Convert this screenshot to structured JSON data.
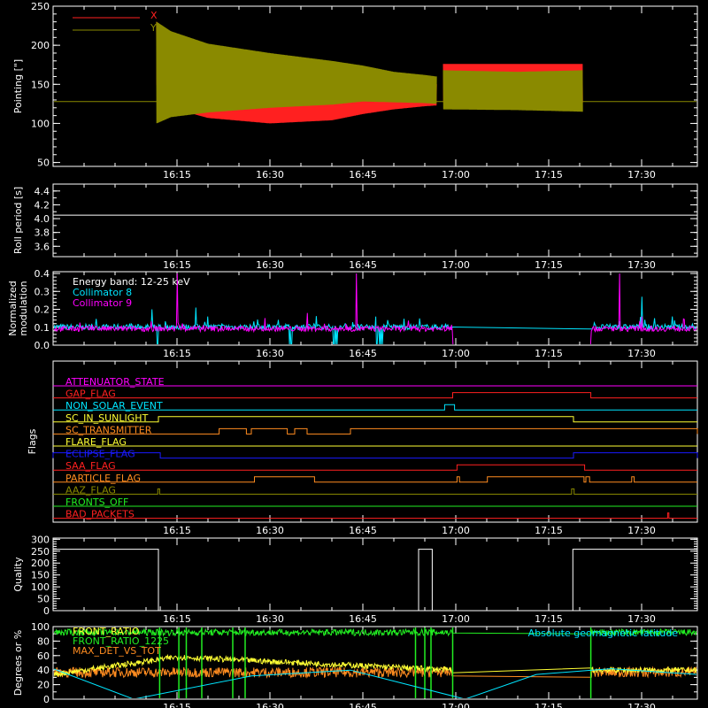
{
  "time_axis": {
    "ticks": [
      "16:15",
      "16:30",
      "16:45",
      "17:00",
      "17:15",
      "17:30"
    ],
    "tick_values_min": [
      975,
      990,
      1005,
      1020,
      1035,
      1050
    ],
    "range_min": [
      955,
      1059
    ]
  },
  "colors": {
    "background": "#000000",
    "axis": "#ffffff",
    "red": "#ff2020",
    "olive": "#8a8a00",
    "cyan": "#00e5ff",
    "magenta": "#ff00ff",
    "yellow": "#ffff33",
    "green": "#22ee22",
    "orange": "#ff8c20",
    "blue": "#1a1aff"
  },
  "chart_data": [
    {
      "type": "line",
      "ylabel": "Pointing [\"]",
      "yticks": [
        50,
        100,
        150,
        200,
        250
      ],
      "ylim": [
        45,
        250
      ],
      "legend": [
        "X",
        "Y"
      ],
      "series": [
        {
          "name": "X",
          "color": "#ff2020",
          "segments": [
            [
              [
                971.7,
                150,
                230
              ],
              [
                974,
                120,
                216
              ],
              [
                980,
                107,
                200
              ],
              [
                990,
                100,
                187
              ],
              [
                1000,
                104,
                176
              ],
              [
                1005,
                112,
                168
              ],
              [
                1010,
                118,
                160
              ],
              [
                1015,
                122,
                152
              ],
              [
                1016.9,
                123,
                150
              ]
            ],
            [
              [
                1018,
                127,
                176
              ],
              [
                1030,
                127,
                176
              ],
              [
                1040.5,
                127,
                176
              ]
            ]
          ]
        },
        {
          "name": "Y",
          "color": "#8a8a00",
          "segments": [
            [
              [
                971.7,
                100,
                230
              ],
              [
                974,
                108,
                218
              ],
              [
                980,
                114,
                202
              ],
              [
                990,
                120,
                190
              ],
              [
                1000,
                124,
                180
              ],
              [
                1005,
                128,
                174
              ],
              [
                1010,
                127,
                166
              ],
              [
                1015,
                126,
                162
              ],
              [
                1016.9,
                125,
                160
              ]
            ],
            [
              [
                1018,
                118,
                168
              ],
              [
                1030,
                117,
                166
              ],
              [
                1040.5,
                115,
                168
              ]
            ]
          ]
        }
      ],
      "baseline": 128
    },
    {
      "type": "line",
      "ylabel": "Roll period [s]",
      "yticks": [
        3.6,
        3.8,
        4.0,
        4.2,
        4.4
      ],
      "ylim": [
        3.45,
        4.5
      ],
      "series": [
        {
          "color": "#ffffff",
          "y": 4.05
        }
      ]
    },
    {
      "type": "line",
      "ylabel": "Normalized\nmodulation",
      "yticks": [
        0,
        0.1,
        0.2,
        0.3,
        0.4
      ],
      "ylim": [
        0,
        0.41
      ],
      "annotation": "Energy band: 12-25 keV",
      "legend": [
        "Collimator 8",
        "Collimator 9"
      ],
      "series": [
        {
          "name": "Collimator 8",
          "color": "#00e5ff",
          "base": 0.1,
          "active": [
            [
              955,
              1019.5
            ],
            [
              1041.8,
              1059
            ]
          ],
          "spikes": [
            [
              971,
              0.2
            ],
            [
              978,
              0.21
            ],
            [
              1009,
              0.14
            ],
            [
              1039,
              0.16
            ],
            [
              1050,
              0.27
            ],
            [
              1055,
              0.16
            ]
          ],
          "dips": [
            [
              971.8,
              973
            ],
            [
              987.2,
              988.3
            ],
            [
              992.8,
              994
            ],
            [
              1000.2,
              1001.3
            ],
            [
              1007.1,
              1008.2
            ]
          ]
        },
        {
          "name": "Collimator 9",
          "color": "#ff00ff",
          "base": 0.09,
          "active": [
            [
              955,
              1019.5
            ],
            [
              1041.8,
              1059
            ]
          ],
          "spikes": [
            [
              975,
              0.4
            ],
            [
              1004,
              0.4
            ],
            [
              1020.5,
              0.29
            ],
            [
              1046.4,
              0.4
            ],
            [
              996,
              0.18
            ],
            [
              1050,
              0.16
            ]
          ],
          "gap_level": 0.0
        }
      ]
    },
    {
      "type": "line",
      "ylabel": "Flags",
      "flags": [
        {
          "name": "ATTENUATOR_STATE",
          "color": "#ff00ff",
          "on": []
        },
        {
          "name": "GAP_FLAG",
          "color": "#ff2020",
          "on": [
            [
              1019.5,
              1041.8
            ]
          ]
        },
        {
          "name": "NON_SOLAR_EVENT",
          "color": "#00e5ff",
          "on": [
            [
              1018.2,
              1019.8
            ]
          ]
        },
        {
          "name": "SC_IN_SUNLIGHT",
          "color": "#ffff33",
          "on": [
            [
              972,
              1039
            ]
          ]
        },
        {
          "name": "SC_TRANSMITTER",
          "color": "#ff8c20",
          "on": [
            [
              981.8,
              986.2
            ],
            [
              987,
              992.8
            ],
            [
              994,
              996
            ],
            [
              1003,
              1059
            ]
          ]
        },
        {
          "name": "FLARE_FLAG",
          "color": "#ffff33",
          "on": []
        },
        {
          "name": "ECLIPSE_FLAG",
          "color": "#1a1aff",
          "on": [
            [
              955,
              972.3
            ],
            [
              1039,
              1059
            ]
          ]
        },
        {
          "name": "SAA_FLAG",
          "color": "#ff2020",
          "on": [
            [
              1020.2,
              1040.8
            ]
          ]
        },
        {
          "name": "PARTICLE_FLAG",
          "color": "#ff8c20",
          "on": [
            [
              987.5,
              997.2
            ],
            [
              1020.2,
              1020.6
            ],
            [
              1025.1,
              1040.7
            ],
            [
              1041,
              1041.6
            ],
            [
              1048.4,
              1048.8
            ]
          ]
        },
        {
          "name": "AAZ_FLAG",
          "color": "#8a8a00",
          "on": [
            [
              971.9,
              972.2
            ],
            [
              1038.7,
              1039.1
            ]
          ]
        },
        {
          "name": "FRONTS_OFF",
          "color": "#22ee22",
          "on": []
        },
        {
          "name": "BAD_PACKETS",
          "color": "#ff2020",
          "on": [
            [
              1054.2,
              1054.4
            ]
          ]
        }
      ]
    },
    {
      "type": "line",
      "ylabel": "Quality",
      "yticks": [
        0,
        50,
        100,
        150,
        200,
        250,
        300
      ],
      "ylim": [
        0,
        305
      ],
      "series": [
        {
          "color": "#ffffff",
          "steps": [
            [
              955,
              258
            ],
            [
              972,
              258
            ],
            [
              972,
              0
            ],
            [
              1014,
              0
            ],
            [
              1014,
              258
            ],
            [
              1016.2,
              258
            ],
            [
              1016.2,
              0
            ],
            [
              1038.9,
              0
            ],
            [
              1038.9,
              258
            ],
            [
              1059,
              258
            ]
          ]
        }
      ]
    },
    {
      "type": "line",
      "ylabel": "Degrees or %",
      "yticks": [
        0,
        20,
        40,
        60,
        80,
        100
      ],
      "ylim": [
        0,
        100
      ],
      "legend": [
        "FRONT_RATIO",
        "FRONT_RATIO_1225",
        "MAX_DET_VS_TOT"
      ],
      "annotation_right": "Absolute geomagnetic latitude",
      "series": [
        {
          "name": "FRONT_RATIO",
          "color": "#ffff33",
          "levels": [
            [
              955,
              34
            ],
            [
              975,
              58
            ],
            [
              1020,
              40
            ],
            [
              1041.8,
              40
            ],
            [
              1059,
              40
            ]
          ]
        },
        {
          "name": "FRONT_RATIO_1225",
          "color": "#22ee22",
          "levels": [
            [
              955,
              92
            ],
            [
              1019.5,
              92
            ],
            [
              1041.8,
              92
            ],
            [
              1059,
              92
            ]
          ]
        },
        {
          "name": "MAX_DET_VS_TOT",
          "color": "#ff8c20",
          "levels": [
            [
              955,
              37
            ],
            [
              1019.5,
              37
            ],
            [
              1041.8,
              37
            ],
            [
              1059,
              37
            ]
          ]
        },
        {
          "name": "Absolute geomagnetic latitude",
          "color": "#00e5ff",
          "x": [
            955,
            968,
            987,
            1003,
            1021.5,
            1033,
            1045,
            1059
          ],
          "y": [
            42,
            0,
            32,
            40,
            0,
            34,
            42,
            34
          ]
        }
      ]
    }
  ]
}
